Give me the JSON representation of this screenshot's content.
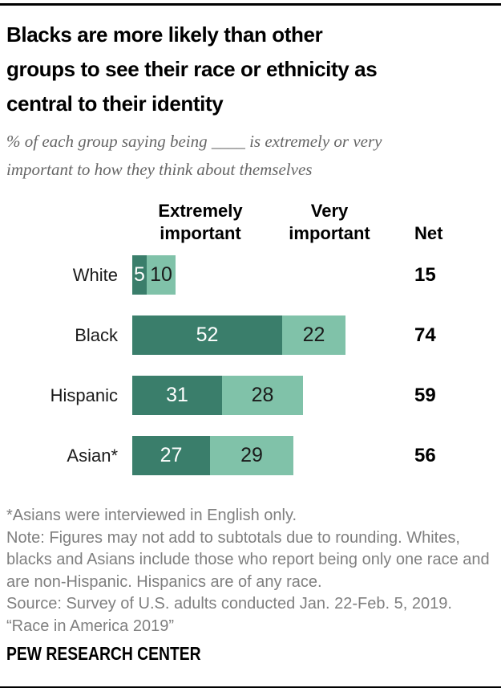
{
  "page": {
    "brand": "PEW RESEARCH CENTER"
  },
  "header": {
    "title_lines": [
      "Blacks are more likely than other",
      "groups to see their race or ethnicity as",
      "central to their identity"
    ],
    "subtitle_lines": [
      "% of each group saying being ____ is extremely or very",
      "important to how they think about themselves"
    ]
  },
  "chart_data": {
    "type": "bar",
    "stacked": true,
    "orientation": "horizontal",
    "title": "Blacks are more likely than other groups to see their race or ethnicity as central to their identity",
    "subtitle": "% of each group saying being ____ is extremely or very important to how they think about themselves",
    "categories": [
      "White",
      "Black",
      "Hispanic",
      "Asian*"
    ],
    "series": [
      {
        "name": "Extremely important",
        "values": [
          5,
          52,
          31,
          27
        ],
        "color": "#3A7E6B",
        "label_color": "#FFFFFF"
      },
      {
        "name": "Very important",
        "values": [
          10,
          22,
          28,
          29
        ],
        "color": "#80C2A9",
        "label_color": "#1A1A1A"
      }
    ],
    "net": {
      "label": "Net",
      "values": [
        15,
        74,
        59,
        56
      ]
    },
    "xlim": [
      0,
      100
    ],
    "value_labels": "inside",
    "grid": false,
    "legend_position": "column-headers-top"
  },
  "notes": {
    "lines": [
      "*Asians were interviewed in English only.",
      "Note: Figures may not add to subtotals due to rounding. Whites,",
      "blacks and Asians include those who report being only one race and",
      "are non-Hispanic. Hispanics are of any race.",
      "Source: Survey of U.S. adults conducted Jan. 22-Feb. 5, 2019.",
      "“Race in America 2019”"
    ]
  }
}
